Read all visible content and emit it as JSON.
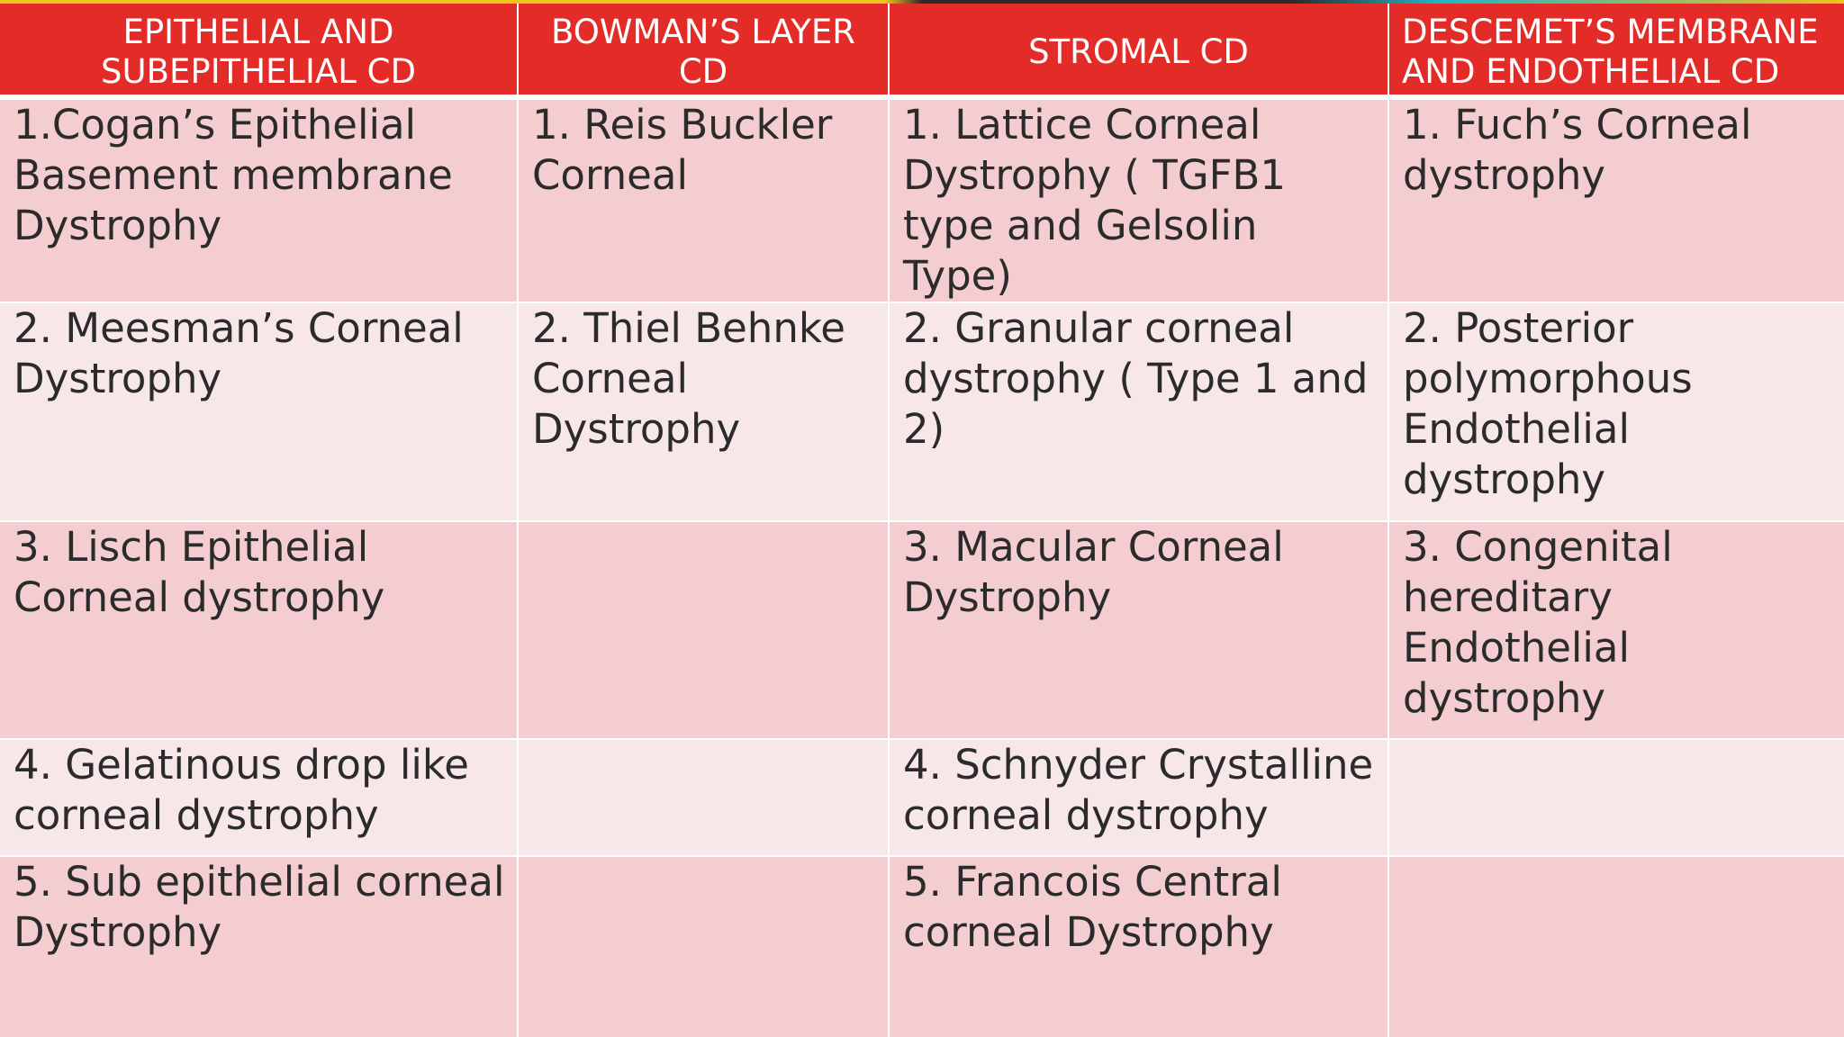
{
  "table": {
    "headers": [
      "EPITHELIAL AND SUBEPITHELIAL CD",
      "BOWMAN’S LAYER CD",
      "STROMAL CD",
      "DESCEMET’S MEMBRANE AND ENDOTHELIAL CD"
    ],
    "rows": [
      [
        "1.Cogan’s Epithelial Basement membrane Dystrophy",
        "1. Reis Buckler Corneal",
        "1. Lattice Corneal Dystrophy ( TGFB1 type and Gelsolin Type)",
        "1. Fuch’s Corneal dystrophy"
      ],
      [
        "2. Meesman’s Corneal Dystrophy",
        "2. Thiel Behnke Corneal Dystrophy",
        "2. Granular corneal dystrophy ( Type 1 and 2)",
        "2. Posterior polymorphous Endothelial dystrophy"
      ],
      [
        "3. Lisch Epithelial Corneal dystrophy",
        "",
        "3. Macular Corneal Dystrophy",
        "3. Congenital hereditary Endothelial dystrophy"
      ],
      [
        "4. Gelatinous drop like corneal dystrophy",
        "",
        "4. Schnyder Crystalline corneal dystrophy",
        ""
      ],
      [
        "5. Sub epithelial corneal Dystrophy",
        "",
        "5. Francois Central corneal Dystrophy",
        ""
      ]
    ]
  },
  "colors": {
    "header_bg": "#e32b27",
    "row_odd_bg": "#f4cdd0",
    "row_even_bg": "#f8e7e8",
    "text": "#2b2b2b"
  }
}
